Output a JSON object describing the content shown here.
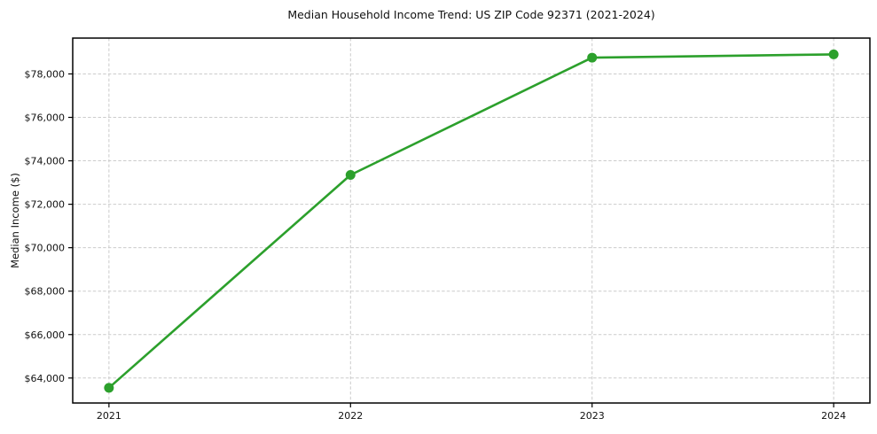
{
  "chart_data": {
    "type": "line",
    "title": "Median Household Income Trend: US ZIP Code 92371 (2021-2024)",
    "xlabel": "",
    "ylabel": "Median Income ($)",
    "x": [
      2021,
      2022,
      2023,
      2024
    ],
    "values": [
      63550,
      73350,
      78750,
      78900
    ],
    "series_name": "Median Household Income",
    "xtick_labels": [
      "2021",
      "2022",
      "2023",
      "2024"
    ],
    "ytick_values": [
      64000,
      66000,
      68000,
      70000,
      72000,
      74000,
      76000,
      78000
    ],
    "ytick_labels": [
      "$64,000",
      "$66,000",
      "$68,000",
      "$70,000",
      "$72,000",
      "$74,000",
      "$76,000",
      "$78,000"
    ],
    "xlim": [
      2020.85,
      2024.15
    ],
    "ylim": [
      62850,
      79650
    ],
    "grid": true,
    "legend": "none",
    "marker": "circle",
    "colors": {
      "line": "#2ca02c",
      "marker": "#2ca02c",
      "grid": "#cccccc",
      "axis": "#000000",
      "text": "#111111",
      "background": "#ffffff"
    }
  }
}
